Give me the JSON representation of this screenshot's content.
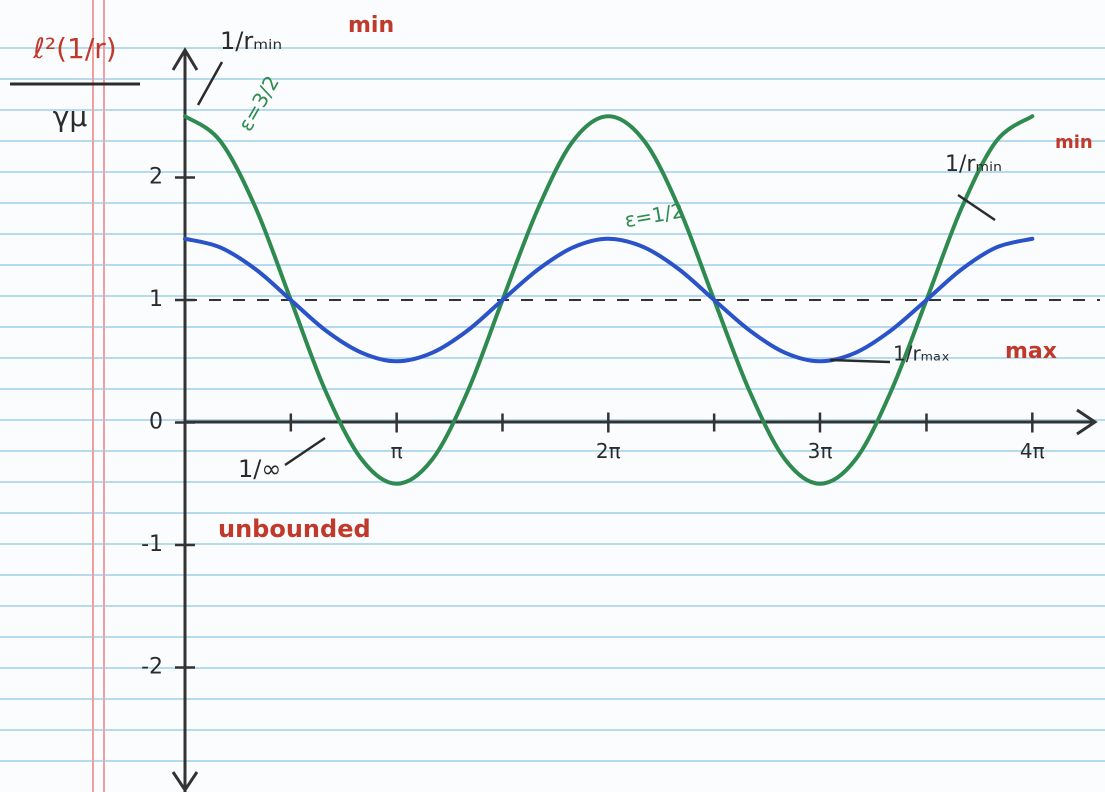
{
  "chart_data": {
    "type": "line",
    "x": [
      0,
      0.52,
      1.05,
      1.57,
      2.09,
      2.62,
      3.14,
      3.67,
      4.19,
      4.71,
      5.24,
      5.76,
      6.28,
      6.81,
      7.33,
      7.85,
      8.38,
      8.9,
      9.42,
      9.95,
      10.47,
      11,
      11.52,
      12.04,
      12.57
    ],
    "series": [
      {
        "name": "ε=3/2",
        "color": "#2f8a4f",
        "values": [
          2.5,
          2.3,
          1.75,
          1,
          0.25,
          -0.3,
          -0.5,
          -0.3,
          0.25,
          1,
          1.75,
          2.3,
          2.5,
          2.3,
          1.75,
          1,
          0.25,
          -0.3,
          -0.5,
          -0.3,
          0.25,
          1,
          1.75,
          2.3,
          2.5
        ]
      },
      {
        "name": "ε=1/2",
        "color": "#2a52c9",
        "values": [
          1.5,
          1.43,
          1.25,
          1,
          0.75,
          0.57,
          0.5,
          0.57,
          0.75,
          1,
          1.25,
          1.43,
          1.5,
          1.43,
          1.25,
          1,
          0.75,
          0.57,
          0.5,
          0.57,
          0.75,
          1,
          1.25,
          1.43,
          1.5
        ]
      }
    ],
    "xlim": [
      0,
      13.5
    ],
    "ylim": [
      -3,
      3
    ],
    "xticks": [
      {
        "value": 3.14,
        "label": "π"
      },
      {
        "value": 6.28,
        "label": "2π"
      },
      {
        "value": 9.42,
        "label": "3π"
      },
      {
        "value": 12.57,
        "label": "4π"
      }
    ],
    "xminorticks": [
      1.57,
      4.71,
      7.85,
      11
    ],
    "yticks": [
      -2,
      -1,
      0,
      1,
      2
    ],
    "reference_line": 1,
    "y_label_numerator": "ℓ²(1/r)",
    "y_label_denominator": "γμ",
    "annotations": [
      "1/rₘᵢₙ",
      "min",
      "1/rₘᵢₙ",
      "min",
      "1/rₘₐₓ",
      "max",
      "1/∞",
      "unbounded"
    ]
  }
}
